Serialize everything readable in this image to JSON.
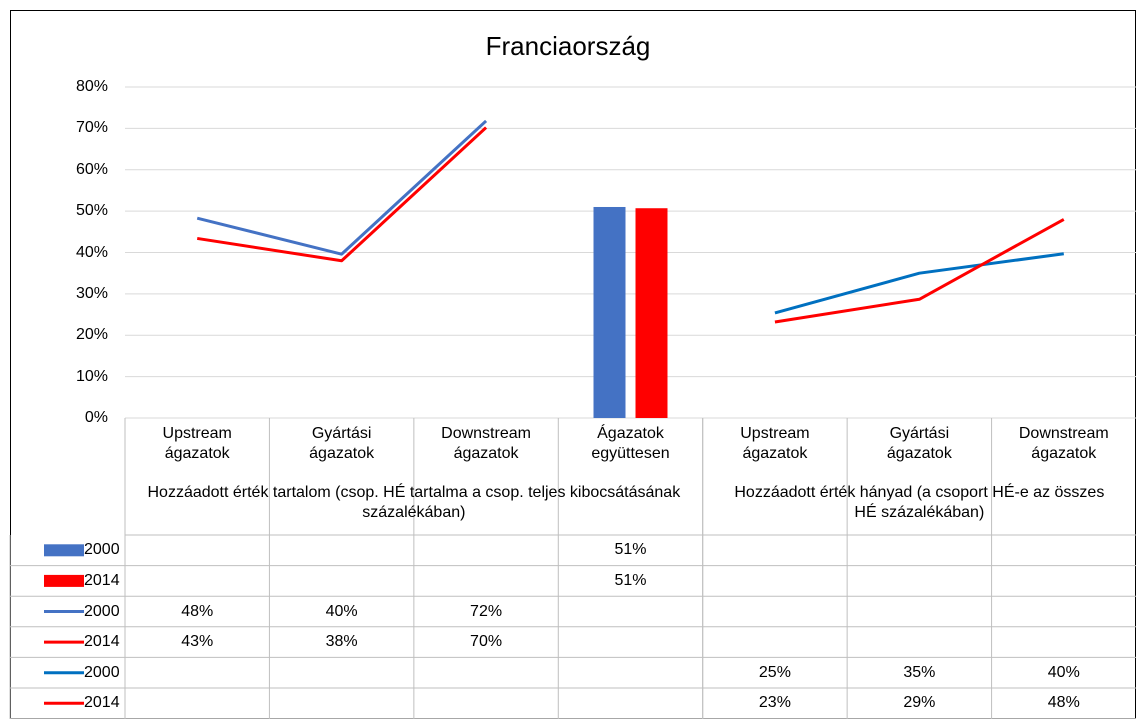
{
  "chart_data": {
    "type": "line",
    "title": "Franciaország",
    "categories": [
      "Upstream ágazatok",
      "Gyártási ágazatok",
      "Downstream ágazatok",
      "Ágazatok együttesen",
      "Upstream ágazatok",
      "Gyártási ágazatok",
      "Downstream ágazatok"
    ],
    "groups": [
      {
        "label": "Hozzáadott érték tartalom (csop. HÉ tartalma a csop. teljes kibocsátásának százalékában)",
        "span": [
          0,
          3
        ]
      },
      {
        "label": "Hozzáadott érték hányad (a csoport HÉ-e az összes HÉ százalékában)",
        "span": [
          4,
          6
        ]
      }
    ],
    "ylim": [
      0,
      80
    ],
    "yticks": [
      {
        "value": 0,
        "label": "0%"
      },
      {
        "value": 10,
        "label": "10%"
      },
      {
        "value": 20,
        "label": "20%"
      },
      {
        "value": 30,
        "label": "30%"
      },
      {
        "value": 40,
        "label": "40%"
      },
      {
        "value": 50,
        "label": "50%"
      },
      {
        "value": 60,
        "label": "60%"
      },
      {
        "value": 70,
        "label": "70%"
      },
      {
        "value": 80,
        "label": "80%"
      }
    ],
    "grid": true,
    "series": [
      {
        "name": "2000",
        "type": "bar",
        "color": "#4472c4",
        "values": [
          null,
          null,
          null,
          51,
          null,
          null,
          null
        ],
        "value_labels": [
          null,
          null,
          null,
          "51%",
          null,
          null,
          null
        ]
      },
      {
        "name": "2014",
        "type": "bar",
        "color": "#ff0000",
        "values": [
          null,
          null,
          null,
          50.7,
          null,
          null,
          null
        ],
        "value_labels": [
          null,
          null,
          null,
          "51%",
          null,
          null,
          null
        ]
      },
      {
        "name": "2000",
        "type": "line",
        "color": "#4472c4",
        "values": [
          48.3,
          39.6,
          71.8,
          null,
          null,
          null,
          null
        ],
        "value_labels": [
          "48%",
          "40%",
          "72%",
          null,
          null,
          null,
          null
        ]
      },
      {
        "name": "2014",
        "type": "line",
        "color": "#ff0000",
        "values": [
          43.4,
          38,
          70.2,
          null,
          null,
          null,
          null
        ],
        "value_labels": [
          "43%",
          "38%",
          "70%",
          null,
          null,
          null,
          null
        ]
      },
      {
        "name": "2000",
        "type": "line",
        "color": "#0070c0",
        "values": [
          null,
          null,
          null,
          null,
          25.4,
          35,
          39.7
        ],
        "value_labels": [
          null,
          null,
          null,
          null,
          "25%",
          "35%",
          "40%"
        ]
      },
      {
        "name": "2014",
        "type": "line",
        "color": "#ff0000",
        "values": [
          null,
          null,
          null,
          null,
          23.2,
          28.7,
          48
        ],
        "value_labels": [
          null,
          null,
          null,
          null,
          "23%",
          "29%",
          "48%"
        ]
      }
    ]
  }
}
